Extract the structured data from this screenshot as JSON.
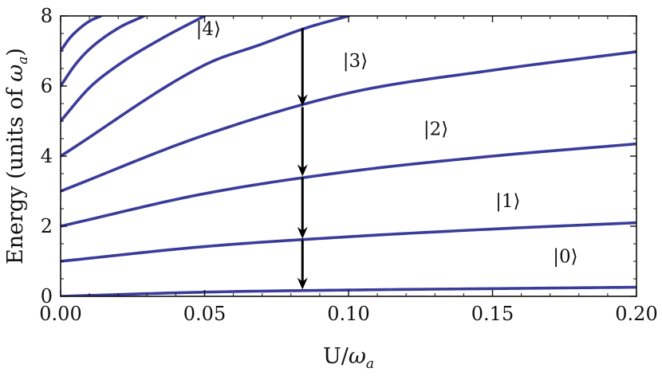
{
  "chart_data": {
    "type": "line",
    "title": "",
    "xlabel_main": "U/",
    "xlabel_symbol": "ω",
    "xlabel_sub": "a",
    "ylabel_main": "Energy (units of ",
    "ylabel_symbol": "ω",
    "ylabel_sub": "a",
    "ylabel_close": ")",
    "xlim": [
      0,
      0.2
    ],
    "ylim": [
      0,
      8
    ],
    "x_ticks": [
      0.0,
      0.05,
      0.1,
      0.15,
      0.2
    ],
    "x_tick_labels": [
      "0.00",
      "0.05",
      "0.10",
      "0.15",
      "0.20"
    ],
    "y_ticks": [
      0,
      2,
      4,
      6,
      8
    ],
    "y_tick_labels": [
      "0",
      "2",
      "4",
      "6",
      "8"
    ],
    "line_color": "#3a3c9a",
    "arrow_color": "#000000",
    "grid": false,
    "legend": "none",
    "series": [
      {
        "level": 0,
        "x": [
          0,
          0.05,
          0.1,
          0.15,
          0.2
        ],
        "values": [
          0.0,
          0.12,
          0.18,
          0.22,
          0.26
        ]
      },
      {
        "level": 1,
        "x": [
          0,
          0.05,
          0.1,
          0.15,
          0.2
        ],
        "values": [
          1.0,
          1.42,
          1.7,
          1.92,
          2.1
        ]
      },
      {
        "level": 2,
        "x": [
          0,
          0.05,
          0.1,
          0.15,
          0.2
        ],
        "values": [
          2.0,
          2.93,
          3.56,
          4.0,
          4.35
        ]
      },
      {
        "level": 3,
        "x": [
          0,
          0.05,
          0.1,
          0.15,
          0.2
        ],
        "values": [
          3.0,
          4.6,
          5.8,
          6.45,
          6.98
        ]
      },
      {
        "level": 4,
        "x": [
          0,
          0.05,
          0.07,
          0.085,
          0.1
        ],
        "values": [
          4.0,
          6.6,
          7.2,
          7.65,
          8.0
        ]
      },
      {
        "level": 5,
        "x": [
          0,
          0.01,
          0.02,
          0.035,
          0.05
        ],
        "values": [
          5.0,
          5.95,
          6.6,
          7.35,
          8.0
        ]
      },
      {
        "level": 6,
        "x": [
          0,
          0.005,
          0.01,
          0.02,
          0.029
        ],
        "values": [
          6.0,
          6.6,
          7.05,
          7.65,
          8.0
        ]
      },
      {
        "level": 7,
        "x": [
          0,
          0.003,
          0.006,
          0.01,
          0.014
        ],
        "values": [
          7.0,
          7.35,
          7.6,
          7.85,
          8.0
        ]
      }
    ],
    "state_labels": [
      {
        "text": "|0⟩",
        "x": 0.171,
        "y": 0.97
      },
      {
        "text": "|1⟩",
        "x": 0.151,
        "y": 2.55
      },
      {
        "text": "|2⟩",
        "x": 0.126,
        "y": 4.6
      },
      {
        "text": "|3⟩",
        "x": 0.098,
        "y": 6.55
      },
      {
        "text": "|4⟩",
        "x": 0.047,
        "y": 7.45
      }
    ],
    "arrows": [
      {
        "x": 0.084,
        "from": 7.65,
        "to": 5.4
      },
      {
        "x": 0.084,
        "from": 5.4,
        "to": 3.4
      },
      {
        "x": 0.084,
        "from": 3.4,
        "to": 1.62
      },
      {
        "x": 0.084,
        "from": 1.62,
        "to": 0.17
      }
    ]
  }
}
